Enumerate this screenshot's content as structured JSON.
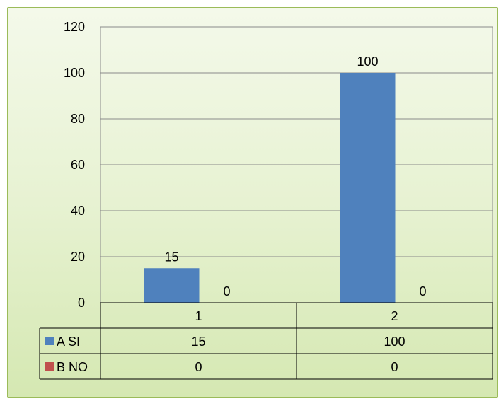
{
  "chart_data": {
    "type": "bar",
    "categories": [
      "1",
      "2"
    ],
    "series": [
      {
        "name": "A SI",
        "values": [
          15,
          100
        ],
        "color": "#4f81bd"
      },
      {
        "name": "B NO",
        "values": [
          0,
          0
        ],
        "color": "#c0504d"
      }
    ],
    "y_ticks": [
      "0",
      "20",
      "40",
      "60",
      "80",
      "100",
      "120"
    ],
    "ylim": [
      0,
      120
    ],
    "grid": true,
    "legend": "data-table"
  }
}
